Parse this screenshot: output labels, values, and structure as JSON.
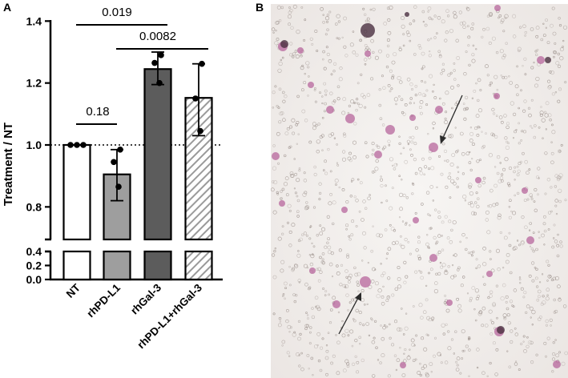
{
  "panel_a_label": "A",
  "panel_b_label": "B",
  "chart_data": {
    "type": "bar",
    "categories": [
      "NT",
      "rhPD-L1",
      "rhGal-3",
      "rhPD-L1+rhGal-3"
    ],
    "values": [
      1.0,
      0.905,
      1.245,
      1.152
    ],
    "error_lower": [
      1.0,
      0.82,
      1.195,
      1.03
    ],
    "error_upper": [
      1.0,
      0.985,
      1.3,
      1.262
    ],
    "points": [
      [
        1.0,
        1.0,
        1.0
      ],
      [
        0.985,
        0.945,
        0.865
      ],
      [
        1.29,
        1.265,
        1.2
      ],
      [
        1.262,
        1.15,
        1.045
      ]
    ],
    "ylabel": "Treatment / NT",
    "xlabel": "",
    "yticks": [
      "1.4",
      "1.2",
      "1.0",
      "0.8",
      "0.4",
      "0.2",
      "0.0"
    ],
    "ylim_upper_segment": [
      0.7,
      1.4
    ],
    "ylim_lower_segment": [
      0.0,
      0.4
    ],
    "reference_line": 1.0,
    "bar_styles": [
      "white",
      "lightgray",
      "darkgray",
      "hatched"
    ],
    "colors": {
      "NT": "#ffffff",
      "rhPD-L1": "#9e9e9e",
      "rhGal-3": "#5c5c5c",
      "hatch": "#9a9a9a"
    },
    "comparisons": [
      {
        "from": "NT",
        "to": "rhGal-3",
        "label": "0.019"
      },
      {
        "from": "rhPD-L1",
        "to": "rhPD-L1+rhGal-3",
        "label": "0.0082"
      },
      {
        "from": "NT",
        "to": "rhPD-L1",
        "label": "0.18"
      }
    ]
  },
  "micrograph": {
    "background_color": "#f2efed",
    "cell_color": "#b7669c",
    "arrow_color": "#2a2a2a"
  }
}
